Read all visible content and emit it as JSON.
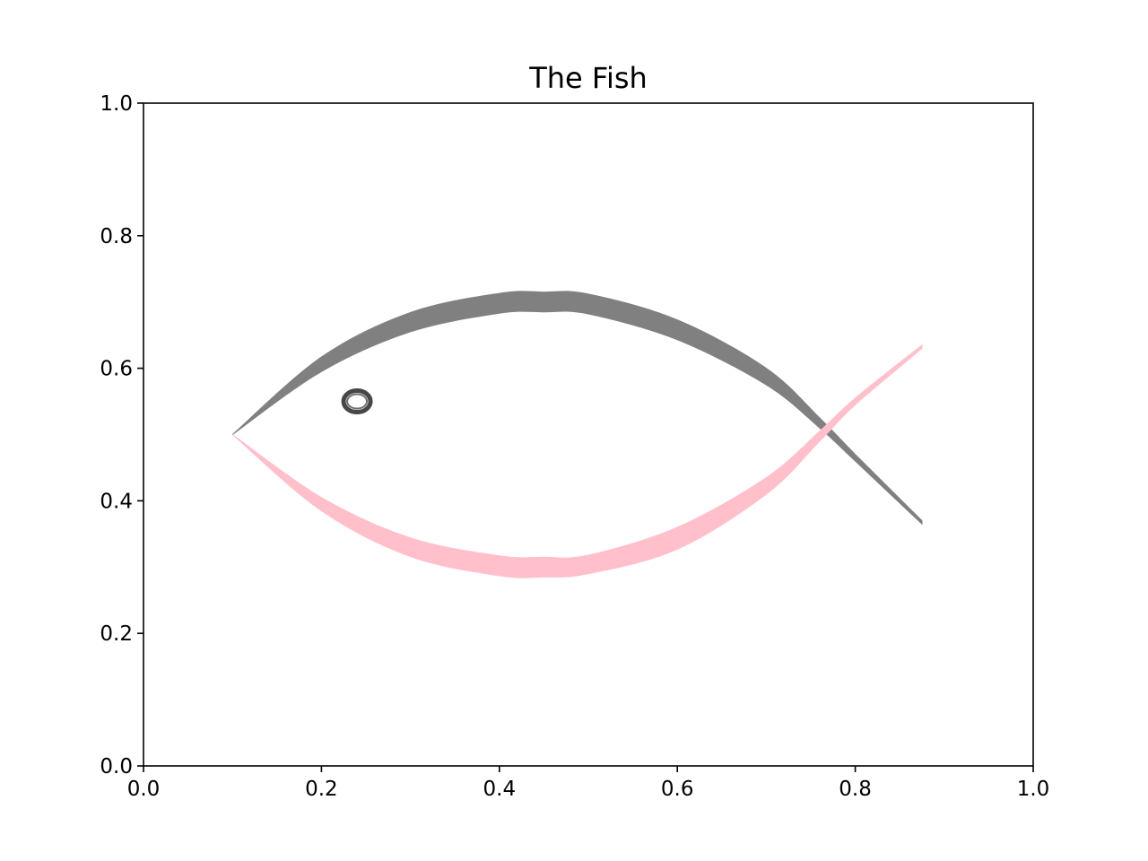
{
  "chart_data": {
    "type": "area",
    "title": "The Fish",
    "xlabel": "",
    "ylabel": "",
    "xlim": [
      0.0,
      1.0
    ],
    "ylim": [
      0.0,
      1.0
    ],
    "grid": false,
    "xticks": [
      "0.0",
      "0.2",
      "0.4",
      "0.6",
      "0.8",
      "1.0"
    ],
    "yticks": [
      "0.0",
      "0.2",
      "0.4",
      "0.6",
      "0.8",
      "1.0"
    ],
    "series": [
      {
        "color": "#808080",
        "x": [
          0.1,
          0.2,
          0.3,
          0.4,
          0.45,
          0.5,
          0.6,
          0.7,
          0.76,
          0.8,
          0.875
        ],
        "y_lower": [
          0.5,
          0.595,
          0.655,
          0.683,
          0.685,
          0.682,
          0.643,
          0.575,
          0.51,
          0.46,
          0.365
        ],
        "y_upper": [
          0.5,
          0.617,
          0.684,
          0.713,
          0.715,
          0.712,
          0.673,
          0.6,
          0.525,
          0.47,
          0.37
        ]
      },
      {
        "color": "#ffc0cb",
        "x": [
          0.1,
          0.2,
          0.3,
          0.4,
          0.45,
          0.5,
          0.6,
          0.7,
          0.76,
          0.8,
          0.875
        ],
        "y_lower": [
          0.5,
          0.385,
          0.316,
          0.287,
          0.285,
          0.29,
          0.327,
          0.41,
          0.49,
          0.545,
          0.63
        ],
        "y_upper": [
          0.5,
          0.405,
          0.344,
          0.317,
          0.315,
          0.318,
          0.36,
          0.435,
          0.505,
          0.555,
          0.635
        ]
      }
    ],
    "eye": {
      "x": 0.24,
      "y": 0.55,
      "color": "#333333"
    }
  }
}
